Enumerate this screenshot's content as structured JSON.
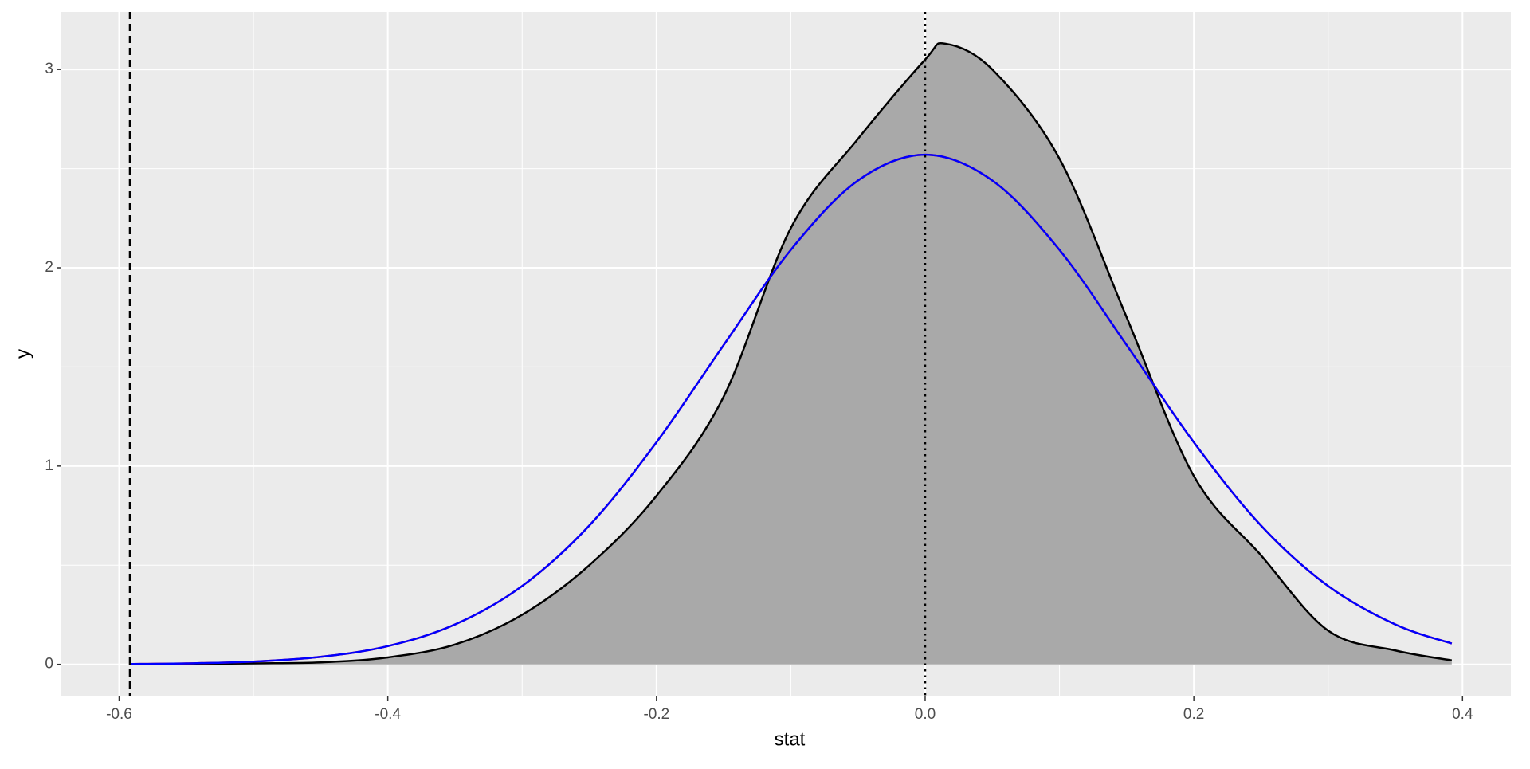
{
  "chart_data": {
    "type": "density",
    "x_label": "stat",
    "y_label": "y",
    "xlim": [
      -0.643,
      0.436
    ],
    "ylim": [
      -0.162,
      3.29
    ],
    "xticks": [
      -0.6,
      -0.4,
      -0.2,
      {
        "value": 0,
        "label": "0.0"
      },
      0.2,
      0.4
    ],
    "yticks": [
      0,
      1,
      2,
      3
    ],
    "grid": true,
    "density": {
      "color": "#000000",
      "fill": "#a9a9a9",
      "x": [
        -0.592,
        -0.55,
        -0.5,
        -0.45,
        -0.4,
        -0.35,
        -0.3,
        -0.25,
        -0.2,
        -0.15,
        -0.1,
        -0.05,
        0,
        0.015,
        0.05,
        0.1,
        0.15,
        0.2,
        0.25,
        0.3,
        0.35,
        0.392
      ],
      "values": [
        0,
        0.002,
        0.005,
        0.01,
        0.035,
        0.1,
        0.25,
        0.5,
        0.85,
        1.35,
        2.2,
        2.65,
        3.05,
        3.13,
        3.0,
        2.55,
        1.75,
        0.95,
        0.55,
        0.17,
        0.07,
        0.02
      ]
    },
    "series": [
      {
        "color": "#ff0000",
        "x": [
          -0.592,
          -0.55,
          -0.5,
          -0.45,
          -0.4,
          -0.35,
          -0.3,
          -0.25,
          -0.2,
          -0.15,
          -0.1,
          -0.05,
          0,
          0.05,
          0.1,
          0.15,
          0.2,
          0.25,
          0.3,
          0.35,
          0.392
        ],
        "values": [
          0.002,
          0.005,
          0.014,
          0.038,
          0.092,
          0.201,
          0.395,
          0.7,
          1.12,
          1.61,
          2.09,
          2.44,
          2.57,
          2.44,
          2.09,
          1.61,
          1.12,
          0.7,
          0.395,
          0.201,
          0.105
        ]
      },
      {
        "color": "#0000ff",
        "x": [
          -0.592,
          -0.55,
          -0.5,
          -0.45,
          -0.4,
          -0.35,
          -0.3,
          -0.25,
          -0.2,
          -0.15,
          -0.1,
          -0.05,
          0,
          0.05,
          0.1,
          0.15,
          0.2,
          0.25,
          0.3,
          0.35,
          0.392
        ],
        "values": [
          0.002,
          0.005,
          0.014,
          0.038,
          0.092,
          0.201,
          0.395,
          0.7,
          1.12,
          1.61,
          2.09,
          2.44,
          2.57,
          2.44,
          2.09,
          1.61,
          1.12,
          0.7,
          0.395,
          0.201,
          0.105
        ]
      }
    ],
    "vlines": [
      {
        "value": -0.592,
        "style": "dashed"
      },
      {
        "value": 0,
        "style": "dotted"
      }
    ]
  }
}
